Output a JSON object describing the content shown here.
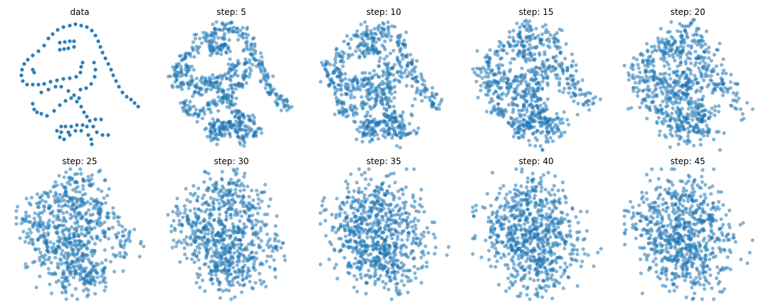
{
  "chart_data": {
    "type": "scatter",
    "grid": false,
    "axes_visible": false,
    "marker_color": "#1f77b4",
    "panel_titles": [
      "data",
      "step: 5",
      "step: 10",
      "step: 15",
      "step: 20",
      "step: 25",
      "step: 30",
      "step: 35",
      "step: 40",
      "step: 45"
    ],
    "steps": [
      0,
      5,
      10,
      15,
      20,
      25,
      30,
      35,
      40,
      45
    ],
    "data_points": [
      [
        46,
        158
      ],
      [
        53,
        164
      ],
      [
        61,
        168
      ],
      [
        70,
        170
      ],
      [
        78,
        172
      ],
      [
        86,
        170
      ],
      [
        94,
        168
      ],
      [
        101,
        163
      ],
      [
        106,
        156
      ],
      [
        110,
        148
      ],
      [
        113,
        140
      ],
      [
        116,
        132
      ],
      [
        120,
        124
      ],
      [
        124,
        116
      ],
      [
        128,
        108
      ],
      [
        131,
        100
      ],
      [
        135,
        92
      ],
      [
        139,
        84
      ],
      [
        144,
        76
      ],
      [
        150,
        70
      ],
      [
        156,
        66
      ],
      [
        161,
        61
      ],
      [
        166,
        56
      ],
      [
        40,
        152
      ],
      [
        34,
        142
      ],
      [
        26,
        134
      ],
      [
        18,
        128
      ],
      [
        11,
        122
      ],
      [
        6,
        116
      ],
      [
        3,
        108
      ],
      [
        2,
        100
      ],
      [
        4,
        92
      ],
      [
        10,
        87
      ],
      [
        18,
        87
      ],
      [
        26,
        87
      ],
      [
        56,
        146
      ],
      [
        63,
        147
      ],
      [
        70,
        148
      ],
      [
        76,
        148
      ],
      [
        56,
        136
      ],
      [
        62,
        137
      ],
      [
        68,
        138
      ],
      [
        76,
        140
      ],
      [
        18,
        108
      ],
      [
        20,
        104
      ],
      [
        34,
        88
      ],
      [
        43,
        91
      ],
      [
        52,
        93
      ],
      [
        61,
        95
      ],
      [
        70,
        96
      ],
      [
        79,
        98
      ],
      [
        85,
        104
      ],
      [
        86,
        112
      ],
      [
        88,
        118
      ],
      [
        104,
        118
      ],
      [
        106,
        108
      ],
      [
        105,
        98
      ],
      [
        100,
        88
      ],
      [
        93,
        82
      ],
      [
        85,
        80
      ],
      [
        30,
        76
      ],
      [
        40,
        80
      ],
      [
        50,
        84
      ],
      [
        58,
        84
      ],
      [
        68,
        78
      ],
      [
        76,
        72
      ],
      [
        83,
        68
      ],
      [
        18,
        60
      ],
      [
        20,
        52
      ],
      [
        24,
        48
      ],
      [
        30,
        46
      ],
      [
        38,
        43
      ],
      [
        48,
        50
      ],
      [
        56,
        58
      ],
      [
        64,
        64
      ],
      [
        72,
        68
      ],
      [
        80,
        63
      ],
      [
        86,
        56
      ],
      [
        90,
        48
      ],
      [
        94,
        42
      ],
      [
        98,
        36
      ],
      [
        106,
        38
      ],
      [
        114,
        38
      ],
      [
        103,
        28
      ],
      [
        108,
        20
      ],
      [
        116,
        16
      ],
      [
        124,
        16
      ],
      [
        94,
        28
      ],
      [
        58,
        28
      ],
      [
        64,
        28
      ],
      [
        72,
        28
      ],
      [
        80,
        30
      ],
      [
        88,
        30
      ],
      [
        52,
        22
      ],
      [
        58,
        20
      ],
      [
        68,
        20
      ],
      [
        78,
        22
      ],
      [
        86,
        22
      ],
      [
        96,
        16
      ],
      [
        100,
        10
      ],
      [
        101,
        3
      ],
      [
        56,
        13
      ],
      [
        62,
        10
      ],
      [
        70,
        16
      ]
    ]
  }
}
